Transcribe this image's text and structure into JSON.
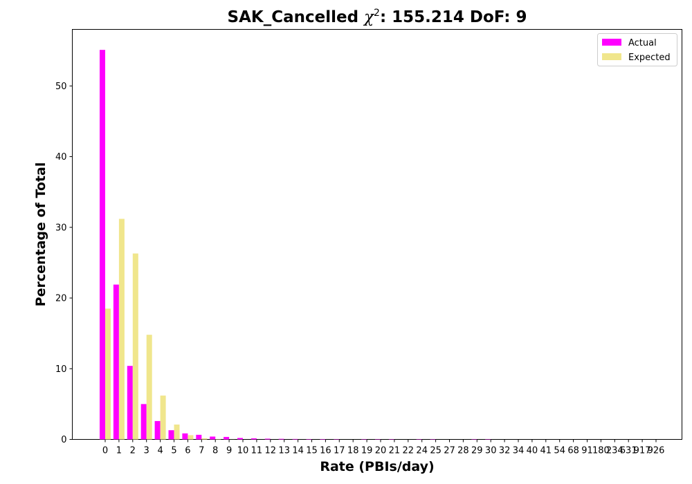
{
  "chart_data": {
    "type": "bar",
    "title_parts": {
      "prefix": "SAK_Cancelled ",
      "chi": "χ",
      "sup": "2",
      "suffix": ": 155.214 DoF: 9"
    },
    "xlabel": "Rate (PBIs/day)",
    "ylabel": "Percentage of Total",
    "ylim": [
      0,
      58
    ],
    "yticks": [
      0,
      10,
      20,
      30,
      40,
      50
    ],
    "categories": [
      "0",
      "1",
      "2",
      "3",
      "4",
      "5",
      "6",
      "7",
      "8",
      "9",
      "10",
      "11",
      "12",
      "13",
      "14",
      "15",
      "16",
      "17",
      "18",
      "19",
      "20",
      "21",
      "22",
      "24",
      "25",
      "27",
      "28",
      "29",
      "30",
      "32",
      "34",
      "40",
      "41",
      "54",
      "68",
      "91",
      "180",
      "234",
      "631",
      "917",
      "926"
    ],
    "series": [
      {
        "name": "Actual",
        "color": "#ff00ff",
        "values": [
          55.1,
          21.9,
          10.4,
          5.0,
          2.6,
          1.3,
          0.85,
          0.65,
          0.4,
          0.35,
          0.2,
          0.15,
          0.1,
          0.08,
          0.06,
          0.05,
          0.05,
          0.04,
          0,
          0.04,
          0.04,
          0.04,
          0,
          0.04,
          0.04,
          0,
          0,
          0.04,
          0.04,
          0,
          0,
          0,
          0,
          0,
          0,
          0,
          0,
          0,
          0,
          0,
          0
        ]
      },
      {
        "name": "Expected",
        "color": "#f0e68c",
        "values": [
          18.5,
          31.2,
          26.3,
          14.8,
          6.2,
          2.1,
          0.6,
          0.15,
          0.04,
          0.01,
          0,
          0,
          0,
          0,
          0,
          0,
          0,
          0,
          0,
          0,
          0,
          0,
          0,
          0,
          0,
          0,
          0,
          0,
          0,
          0,
          0,
          0,
          0,
          0,
          0,
          0,
          0,
          0,
          0,
          0,
          0
        ]
      }
    ],
    "legend_position": "top-right",
    "grid": false
  }
}
